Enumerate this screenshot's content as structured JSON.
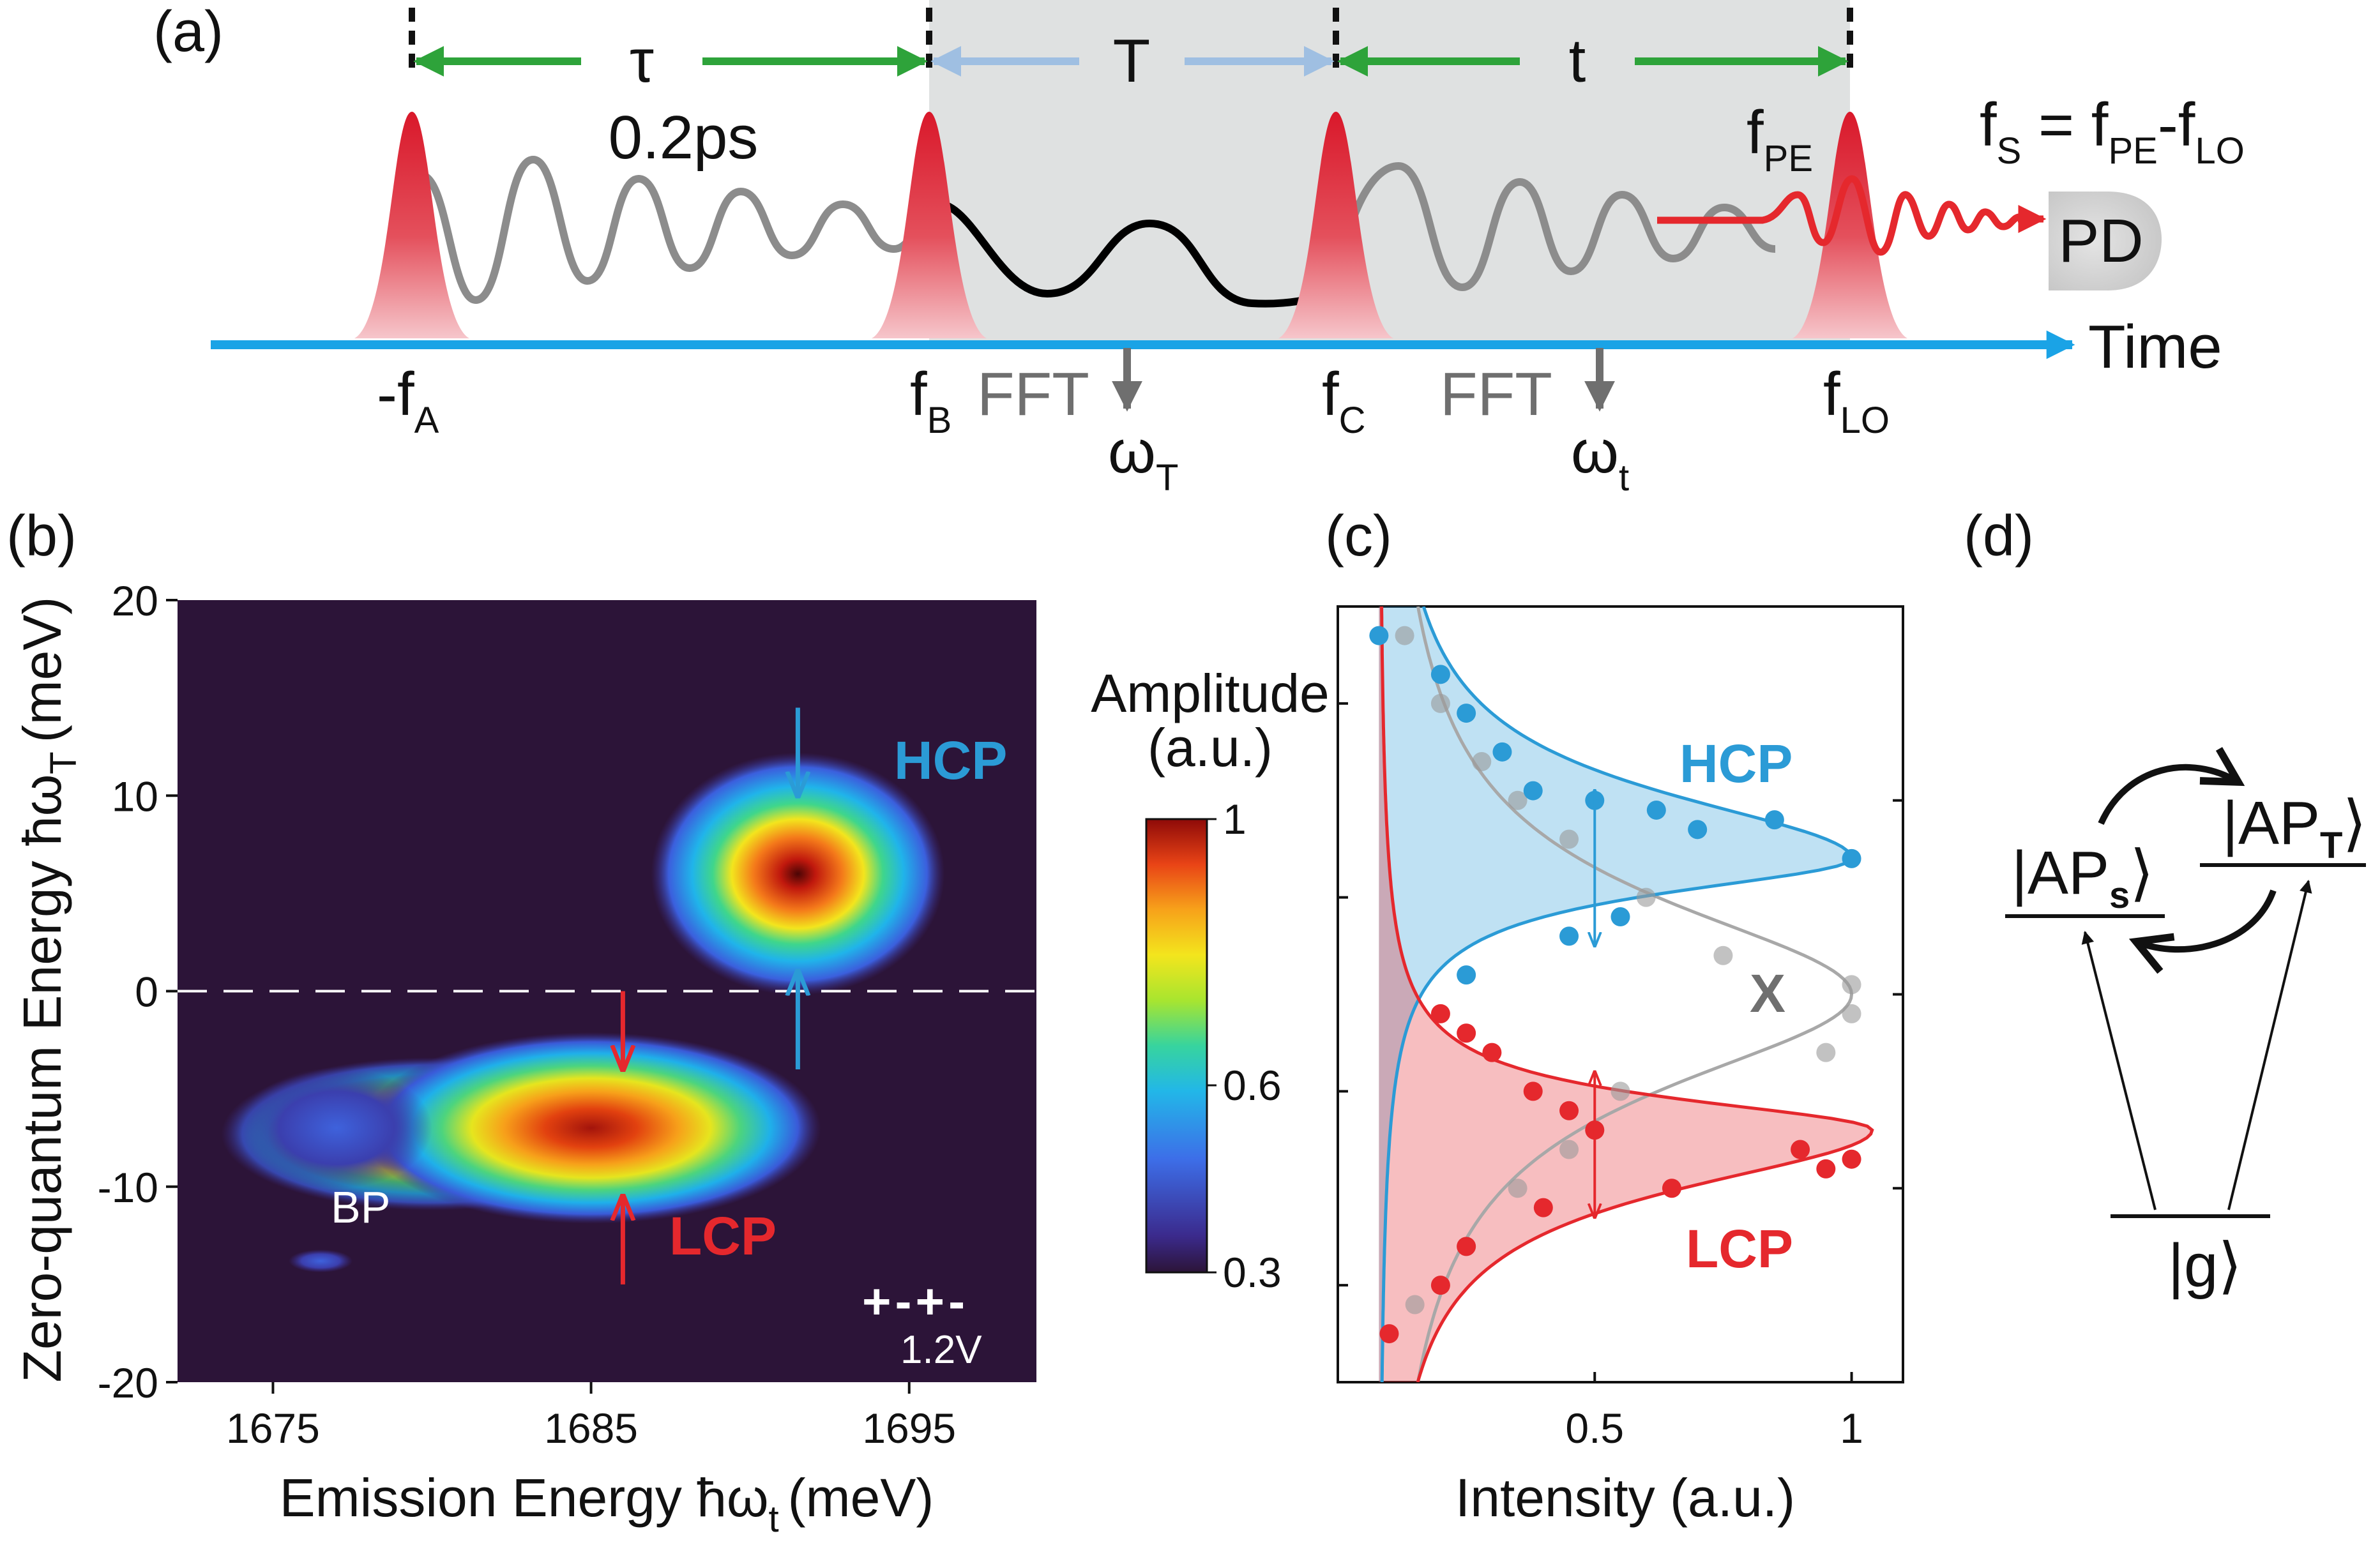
{
  "panel_a": {
    "label": "(a)",
    "tau": {
      "sym": "τ",
      "value": "0.2ps"
    },
    "T": "T",
    "t": "t",
    "pulses": [
      {
        "main": "-f",
        "sub": "A"
      },
      {
        "main": "f",
        "sub": "B"
      },
      {
        "main": "f",
        "sub": "C"
      },
      {
        "main": "f",
        "sub": "LO"
      }
    ],
    "fpe": {
      "main": "f",
      "sub": "PE"
    },
    "signal_eq": {
      "lhs_main": "f",
      "lhs_sub": "S",
      "eq": " = ",
      "a_main": "f",
      "a_sub": "PE",
      "minus": "-",
      "b_main": "f",
      "b_sub": "LO"
    },
    "fft": "FFT",
    "omega_T": {
      "main": "ω",
      "sub": "T"
    },
    "omega_t": {
      "main": "ω",
      "sub": "t"
    },
    "pd": "PD",
    "time_label": "Time",
    "colors": {
      "pulse": "#d9182a",
      "axis": "#1aa3e6",
      "green": "#2ea33a",
      "lightblue": "#9fbfe2",
      "shade": "#dfe1e1",
      "gray_wave": "#8c8c8c",
      "black_wave": "#000000"
    }
  },
  "panel_b": {
    "label": "(b)",
    "chart_data": {
      "type": "heatmap",
      "xlabel": "Emission Energy ħω",
      "xlabel_sub": "t",
      "xlabel_unit": "(meV)",
      "ylabel": "Zero-quantum Energy ħω",
      "ylabel_sub": "T",
      "ylabel_unit": "(meV)",
      "xlim": [
        1672,
        1699
      ],
      "ylim": [
        -20,
        20
      ],
      "xticks": [
        1675,
        1685,
        1695
      ],
      "yticks": [
        20,
        10,
        0,
        -10,
        -20
      ],
      "dashed_hline_y": 0,
      "peaks": [
        {
          "name": "HCP",
          "x": 1691.5,
          "y": 6,
          "amplitude": 1.0
        },
        {
          "name": "LCP",
          "x": 1685,
          "y": -7,
          "amplitude": 0.95
        },
        {
          "name": "BP",
          "x": 1677,
          "y": -7,
          "amplitude": 0.4
        }
      ],
      "annotations": {
        "hcp": "HCP",
        "lcp": "LCP",
        "bp": "BP",
        "pol": "+-+-",
        "voltage": "1.2V"
      },
      "colorbar": {
        "title1": "Amplitude",
        "title2": "(a.u.)",
        "ticks": [
          "1",
          "0.6",
          "0.3"
        ],
        "range": [
          0.3,
          1
        ]
      },
      "background": "#2c1438"
    }
  },
  "panel_c": {
    "label": "(c)",
    "chart_data": {
      "type": "scatter",
      "xlabel": "Intensity (a.u.)",
      "xticks": [
        0.5,
        1
      ],
      "xlim": [
        0,
        1.1
      ],
      "ylim": [
        -20,
        20
      ],
      "series": [
        {
          "name": "HCP",
          "color": "#2b9bd6",
          "x": [
            0.08,
            0.2,
            0.25,
            0.32,
            0.38,
            0.5,
            0.62,
            0.7,
            0.85,
            1.0,
            0.55,
            0.45,
            0.25
          ],
          "y": [
            18.5,
            16.5,
            14.5,
            12.5,
            10.5,
            10,
            9.5,
            8.5,
            9,
            7,
            4,
            3,
            1
          ]
        },
        {
          "name": "LCP",
          "color": "#e5282d",
          "x": [
            0.2,
            0.25,
            0.3,
            0.38,
            0.45,
            0.5,
            0.9,
            1.0,
            0.95,
            0.65,
            0.4,
            0.25,
            0.2,
            0.1
          ],
          "y": [
            -1,
            -2,
            -3,
            -5,
            -6,
            -7,
            -8,
            -8.5,
            -9,
            -10,
            -11,
            -13,
            -15,
            -17.5
          ]
        },
        {
          "name": "X",
          "color": "#9a9a9a",
          "x": [
            0.13,
            0.2,
            0.28,
            0.35,
            0.45,
            0.6,
            0.75,
            1.0,
            1.0,
            0.95,
            0.55,
            0.5,
            0.45,
            0.35,
            0.25,
            0.15
          ],
          "y": [
            18.5,
            15,
            12,
            10,
            8,
            5,
            2,
            0.5,
            -1,
            -3,
            -5,
            -7,
            -8,
            -10,
            -13,
            -16
          ]
        }
      ],
      "labels": {
        "hcp": "HCP",
        "lcp": "LCP",
        "x": "X"
      }
    }
  },
  "panel_d": {
    "label": "(d)",
    "levels": [
      {
        "pre": "|AP",
        "sub": "s",
        "post": "⟩"
      },
      {
        "pre": "|AP",
        "sub": "T",
        "post": "⟩"
      },
      {
        "pre": "|g",
        "sub": "",
        "post": "⟩"
      }
    ]
  }
}
